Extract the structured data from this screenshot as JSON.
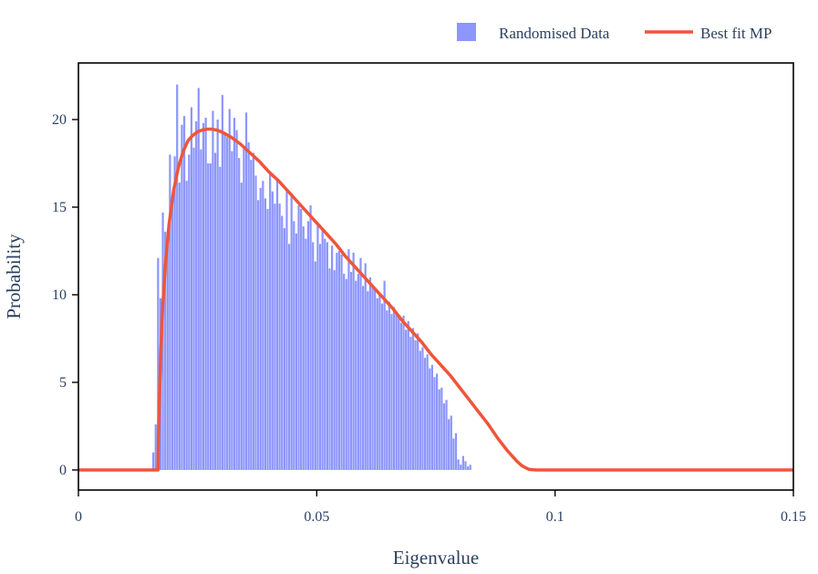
{
  "chart_data": {
    "type": "bar",
    "xlabel": "Eigenvalue",
    "ylabel": "Probability",
    "xlim": [
      0,
      0.15
    ],
    "ylim": [
      -1.2,
      23
    ],
    "x_ticks": [
      {
        "value": 0,
        "label": "0"
      },
      {
        "value": 0.05,
        "label": "0.05"
      },
      {
        "value": 0.1,
        "label": "0.1"
      },
      {
        "value": 0.15,
        "label": "0.15"
      }
    ],
    "y_ticks": [
      {
        "value": 0,
        "label": "0"
      },
      {
        "value": 5,
        "label": "5"
      },
      {
        "value": 10,
        "label": "10"
      },
      {
        "value": 15,
        "label": "15"
      },
      {
        "value": 20,
        "label": "20"
      }
    ],
    "grid": false,
    "legend_position": "top-right",
    "series": [
      {
        "name": "Randomised Data",
        "kind": "histogram",
        "color": "#8c96fb",
        "bin_width": 0.0005,
        "bin_start": 0.0155,
        "values": [
          1.0,
          2.6,
          12.1,
          9.8,
          14.7,
          13.6,
          12.8,
          18.0,
          15.5,
          17.9,
          22.0,
          16.4,
          19.7,
          20.2,
          16.5,
          18.0,
          20.7,
          18.4,
          19.9,
          21.8,
          18.3,
          19.8,
          20.1,
          17.5,
          17.5,
          20.5,
          18.1,
          20.0,
          17.3,
          21.4,
          19.3,
          19.0,
          20.6,
          18.2,
          20.1,
          19.4,
          17.8,
          16.4,
          18.4,
          20.4,
          18.7,
          17.7,
          18.1,
          16.8,
          15.4,
          16.1,
          16.5,
          15.5,
          14.9,
          17.0,
          15.9,
          15.2,
          16.6,
          15.2,
          14.5,
          13.8,
          15.9,
          12.9,
          15.7,
          14.2,
          13.5,
          15.1,
          14.9,
          13.9,
          13.2,
          14.2,
          15.1,
          13.0,
          11.9,
          14.0,
          12.9,
          13.8,
          13.2,
          13.0,
          11.5,
          12.8,
          11.4,
          12.4,
          12.5,
          12.3,
          11.2,
          10.9,
          12.6,
          11.3,
          12.4,
          10.8,
          11.2,
          12.1,
          10.5,
          11.8,
          10.2,
          11.0,
          10.4,
          10.3,
          9.8,
          10.0,
          9.5,
          10.8,
          9.1,
          9.6,
          8.9,
          9.3,
          9.0,
          8.7,
          8.4,
          8.8,
          8.0,
          8.5,
          7.6,
          8.1,
          7.4,
          7.8,
          6.8,
          7.0,
          6.4,
          6.6,
          5.8,
          6.0,
          5.3,
          5.5,
          4.6,
          4.7,
          3.8,
          4.0,
          2.9,
          3.1,
          1.8,
          2.1,
          0.6,
          0.3,
          0.8,
          0.5,
          0.2,
          0.3
        ]
      },
      {
        "name": "Best fit MP",
        "kind": "line",
        "color": "#ef553b",
        "lambda_min": 0.0167,
        "lambda_max": 0.096,
        "x": [
          0,
          0.0167,
          0.0168,
          0.017,
          0.0173,
          0.0177,
          0.0183,
          0.019,
          0.02,
          0.021,
          0.022,
          0.023,
          0.024,
          0.025,
          0.026,
          0.027,
          0.028,
          0.029,
          0.03,
          0.032,
          0.034,
          0.036,
          0.038,
          0.04,
          0.042,
          0.044,
          0.046,
          0.048,
          0.05,
          0.052,
          0.054,
          0.056,
          0.058,
          0.06,
          0.062,
          0.064,
          0.066,
          0.068,
          0.07,
          0.072,
          0.074,
          0.076,
          0.078,
          0.08,
          0.082,
          0.084,
          0.086,
          0.088,
          0.09,
          0.091,
          0.092,
          0.093,
          0.094,
          0.0945,
          0.095,
          0.0955,
          0.0958,
          0.096,
          0.15
        ],
        "y": [
          0,
          0,
          2.0,
          4.2,
          6.9,
          9.4,
          11.9,
          14.0,
          16.0,
          17.3,
          18.2,
          18.8,
          19.1,
          19.3,
          19.4,
          19.45,
          19.45,
          19.4,
          19.3,
          19.0,
          18.6,
          18.1,
          17.6,
          17.0,
          16.5,
          15.9,
          15.3,
          14.7,
          14.1,
          13.5,
          12.9,
          12.2,
          11.6,
          11.0,
          10.4,
          9.8,
          9.2,
          8.5,
          7.9,
          7.3,
          6.6,
          6.0,
          5.4,
          4.7,
          4.0,
          3.3,
          2.6,
          1.8,
          1.1,
          0.8,
          0.5,
          0.25,
          0.1,
          0.04,
          0.02,
          0.01,
          0.005,
          0,
          0
        ]
      }
    ]
  }
}
